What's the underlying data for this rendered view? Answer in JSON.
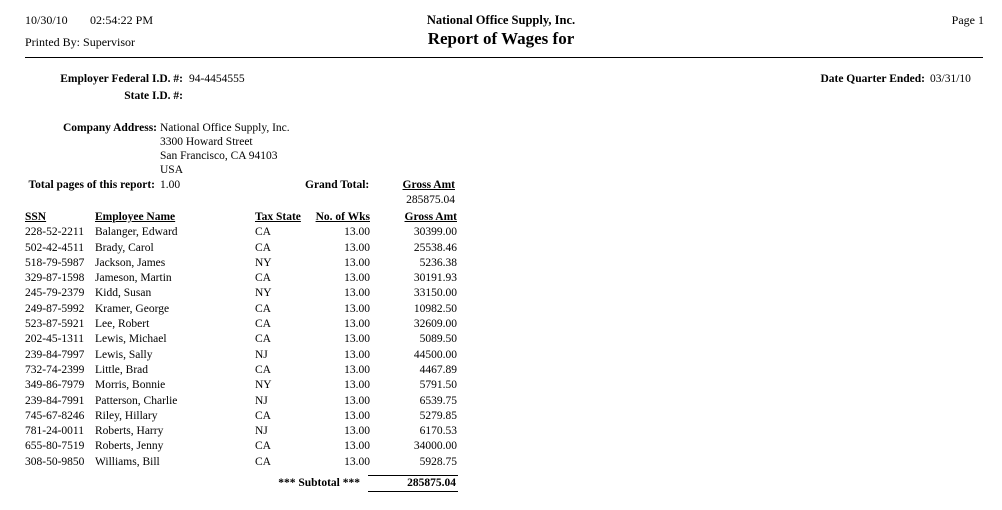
{
  "header": {
    "date": "10/30/10",
    "time": "02:54:22 PM",
    "printed_by_label": "Printed By:",
    "printed_by_value": "Supervisor",
    "company_title": "National Office Supply, Inc.",
    "report_title": "Report of Wages for",
    "page_label": "Page 1"
  },
  "info": {
    "employer_fed_id_label": "Employer Federal I.D. #:",
    "employer_fed_id_value": "94-4454555",
    "state_id_label": "State I.D. #:",
    "state_id_value": "",
    "date_quarter_label": "Date Quarter Ended:",
    "date_quarter_value": "03/31/10",
    "company_address_label": "Company Address:",
    "address_lines": [
      "National Office Supply, Inc.",
      "3300 Howard Street",
      "San Francisco, CA 94103",
      "USA"
    ],
    "total_pages_label": "Total pages of this report:",
    "total_pages_value": "1.00",
    "grand_total_label": "Grand Total:",
    "gross_amt_label": "Gross Amt",
    "grand_total_value": "285875.04"
  },
  "table": {
    "headers": [
      "SSN",
      "Employee Name",
      "Tax State",
      "No. of Wks",
      "Gross Amt"
    ],
    "rows": [
      [
        "228-52-2211",
        "Balanger, Edward",
        "CA",
        "13.00",
        "30399.00"
      ],
      [
        "502-42-4511",
        "Brady, Carol",
        "CA",
        "13.00",
        "25538.46"
      ],
      [
        "518-79-5987",
        "Jackson, James",
        "NY",
        "13.00",
        "5236.38"
      ],
      [
        "329-87-1598",
        "Jameson, Martin",
        "CA",
        "13.00",
        "30191.93"
      ],
      [
        "245-79-2379",
        "Kidd, Susan",
        "NY",
        "13.00",
        "33150.00"
      ],
      [
        "249-87-5992",
        "Kramer, George",
        "CA",
        "13.00",
        "10982.50"
      ],
      [
        "523-87-5921",
        "Lee, Robert",
        "CA",
        "13.00",
        "32609.00"
      ],
      [
        "202-45-1311",
        "Lewis, Michael",
        "CA",
        "13.00",
        "5089.50"
      ],
      [
        "239-84-7997",
        "Lewis, Sally",
        "NJ",
        "13.00",
        "44500.00"
      ],
      [
        "732-74-2399",
        "Little, Brad",
        "CA",
        "13.00",
        "4467.89"
      ],
      [
        "349-86-7979",
        "Morris, Bonnie",
        "NY",
        "13.00",
        "5791.50"
      ],
      [
        "239-84-7991",
        "Patterson, Charlie",
        "NJ",
        "13.00",
        "6539.75"
      ],
      [
        "745-67-8246",
        "Riley, Hillary",
        "CA",
        "13.00",
        "5279.85"
      ],
      [
        "781-24-0011",
        "Roberts, Harry",
        "NJ",
        "13.00",
        "6170.53"
      ],
      [
        "655-80-7519",
        "Roberts, Jenny",
        "CA",
        "13.00",
        "34000.00"
      ],
      [
        "308-50-9850",
        "Williams, Bill",
        "CA",
        "13.00",
        "5928.75"
      ]
    ],
    "subtotal_label": "*** Subtotal ***",
    "subtotal_value": "285875.04"
  }
}
